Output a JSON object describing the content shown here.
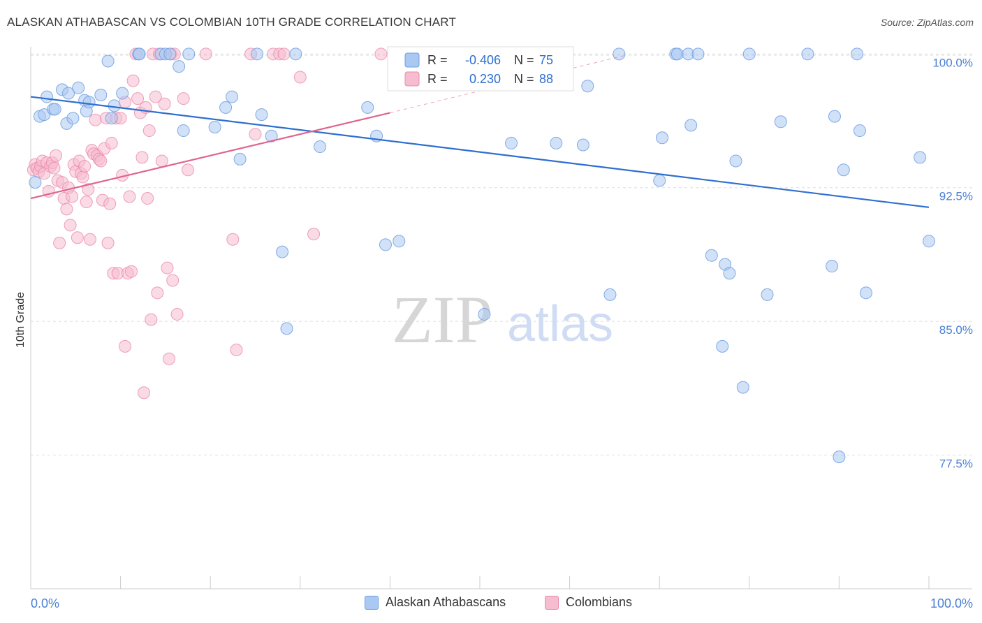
{
  "header": {
    "title": "ALASKAN ATHABASCAN VS COLOMBIAN 10TH GRADE CORRELATION CHART",
    "source": "Source: ZipAtlas.com"
  },
  "watermark": {
    "zip": "ZIP",
    "atlas": "atlas"
  },
  "colors": {
    "blue_fill": "#a9c8f2",
    "blue_stroke": "#6f9ee0",
    "blue_line": "#2d6fd0",
    "pink_fill": "#f6bcd0",
    "pink_stroke": "#ea8aab",
    "pink_line": "#e0648e",
    "axis_label_blue": "#4a7fd4",
    "grid": "#dddddd"
  },
  "legend_stats": {
    "rows": [
      {
        "r_label": "R =",
        "r_value": "-0.406",
        "n_label": "N =",
        "n_value": "75"
      },
      {
        "r_label": "R =",
        "r_value": "0.230",
        "n_label": "N =",
        "n_value": "88"
      }
    ]
  },
  "legend_bottom": {
    "items": [
      {
        "label": "Alaskan Athabascans"
      },
      {
        "label": "Colombians"
      }
    ]
  },
  "chart_data": {
    "type": "scatter",
    "xlabel": "",
    "ylabel": "10th Grade",
    "xlim": [
      0,
      100
    ],
    "ylim": [
      70.0,
      100.6
    ],
    "x_tick_labels": [
      "0.0%",
      "100.0%"
    ],
    "y_ticks": [
      77.5,
      85.0,
      92.5,
      100.0
    ],
    "y_tick_labels": [
      "77.5%",
      "85.0%",
      "92.5%",
      "100.0%"
    ],
    "grid": "horizontal dashed",
    "legend_position": "top-center",
    "series": [
      {
        "name": "Alaskan Athabascans",
        "r": -0.406,
        "n": 75,
        "trend": {
          "x": [
            0,
            100
          ],
          "y": [
            97.6,
            91.4
          ]
        },
        "points": [
          [
            0.5,
            92.8
          ],
          [
            1,
            96.5
          ],
          [
            1.5,
            96.6
          ],
          [
            1.8,
            97.6
          ],
          [
            2.5,
            96.9
          ],
          [
            2.7,
            96.9
          ],
          [
            3.5,
            98.0
          ],
          [
            4,
            96.1
          ],
          [
            4.2,
            97.8
          ],
          [
            4.7,
            96.4
          ],
          [
            5.3,
            98.1
          ],
          [
            6,
            97.4
          ],
          [
            6.2,
            96.8
          ],
          [
            6.5,
            97.3
          ],
          [
            7.8,
            97.7
          ],
          [
            8.6,
            99.6
          ],
          [
            9,
            96.4
          ],
          [
            9.3,
            97.1
          ],
          [
            10.2,
            97.8
          ],
          [
            12,
            100
          ],
          [
            12.1,
            100
          ],
          [
            14.5,
            100
          ],
          [
            15,
            100
          ],
          [
            15.5,
            100
          ],
          [
            16.5,
            99.3
          ],
          [
            17,
            95.7
          ],
          [
            17.6,
            100
          ],
          [
            20.5,
            95.9
          ],
          [
            21.7,
            97.0
          ],
          [
            22.4,
            97.6
          ],
          [
            23.3,
            94.1
          ],
          [
            25.2,
            100
          ],
          [
            25.7,
            96.6
          ],
          [
            26.8,
            95.4
          ],
          [
            28,
            88.9
          ],
          [
            28.5,
            84.6
          ],
          [
            29.5,
            100
          ],
          [
            32.2,
            94.8
          ],
          [
            37.5,
            97.0
          ],
          [
            38.5,
            95.4
          ],
          [
            39.5,
            89.3
          ],
          [
            41,
            89.5
          ],
          [
            50.5,
            85.4
          ],
          [
            53.5,
            95.0
          ],
          [
            58.5,
            95.0
          ],
          [
            61.5,
            94.9
          ],
          [
            62,
            98.2
          ],
          [
            64.5,
            86.5
          ],
          [
            65.5,
            100
          ],
          [
            70,
            92.9
          ],
          [
            70.3,
            95.3
          ],
          [
            71.8,
            100
          ],
          [
            72,
            100
          ],
          [
            73.2,
            100
          ],
          [
            73.5,
            96.0
          ],
          [
            74.3,
            100
          ],
          [
            75.8,
            88.7
          ],
          [
            77,
            83.6
          ],
          [
            77.3,
            88.2
          ],
          [
            77.8,
            87.7
          ],
          [
            78.5,
            94.0
          ],
          [
            79.3,
            81.3
          ],
          [
            80,
            100
          ],
          [
            82,
            86.5
          ],
          [
            83.5,
            96.2
          ],
          [
            86.5,
            100
          ],
          [
            89.2,
            88.1
          ],
          [
            89.5,
            96.5
          ],
          [
            90,
            77.4
          ],
          [
            90.5,
            93.5
          ],
          [
            92,
            100
          ],
          [
            92.3,
            95.7
          ],
          [
            93,
            86.6
          ],
          [
            99,
            94.2
          ],
          [
            100,
            89.5
          ]
        ]
      },
      {
        "name": "Colombians",
        "r": 0.23,
        "n": 88,
        "trend": {
          "x": [
            0,
            40
          ],
          "y": [
            91.9,
            96.7
          ]
        },
        "trend_dashed": {
          "x": [
            40,
            66
          ],
          "y": [
            96.7,
            99.9
          ]
        },
        "points": [
          [
            0.3,
            93.5
          ],
          [
            0.5,
            93.8
          ],
          [
            0.7,
            93.6
          ],
          [
            0.9,
            93.4
          ],
          [
            1.1,
            93.7
          ],
          [
            1.3,
            94.0
          ],
          [
            1.5,
            93.3
          ],
          [
            1.8,
            93.9
          ],
          [
            2,
            92.3
          ],
          [
            2.2,
            93.7
          ],
          [
            2.4,
            93.9
          ],
          [
            2.6,
            93.6
          ],
          [
            2.8,
            94.3
          ],
          [
            3,
            92.9
          ],
          [
            3.2,
            89.4
          ],
          [
            3.5,
            92.8
          ],
          [
            3.7,
            91.9
          ],
          [
            4,
            91.3
          ],
          [
            4.2,
            92.5
          ],
          [
            4.4,
            90.4
          ],
          [
            4.6,
            92.0
          ],
          [
            4.8,
            93.8
          ],
          [
            5,
            93.4
          ],
          [
            5.2,
            89.7
          ],
          [
            5.4,
            94.0
          ],
          [
            5.6,
            93.3
          ],
          [
            5.8,
            93.1
          ],
          [
            6,
            93.7
          ],
          [
            6.2,
            91.7
          ],
          [
            6.4,
            92.4
          ],
          [
            6.6,
            89.6
          ],
          [
            6.8,
            94.6
          ],
          [
            7,
            94.4
          ],
          [
            7.2,
            96.3
          ],
          [
            7.4,
            94.3
          ],
          [
            7.6,
            94.1
          ],
          [
            7.8,
            94.0
          ],
          [
            8,
            91.8
          ],
          [
            8.2,
            94.7
          ],
          [
            8.4,
            96.4
          ],
          [
            8.6,
            89.4
          ],
          [
            8.8,
            91.6
          ],
          [
            9,
            95.0
          ],
          [
            9.2,
            87.7
          ],
          [
            9.5,
            96.4
          ],
          [
            9.7,
            87.7
          ],
          [
            10,
            96.4
          ],
          [
            10.2,
            93.2
          ],
          [
            10.5,
            97.3
          ],
          [
            10.5,
            83.6
          ],
          [
            10.8,
            87.7
          ],
          [
            11,
            92.0
          ],
          [
            11.2,
            87.8
          ],
          [
            11.4,
            98.5
          ],
          [
            11.7,
            100
          ],
          [
            11.9,
            97.5
          ],
          [
            12.2,
            96.7
          ],
          [
            12.4,
            94.2
          ],
          [
            12.6,
            81.0
          ],
          [
            12.8,
            97.0
          ],
          [
            13,
            91.9
          ],
          [
            13.2,
            95.7
          ],
          [
            13.4,
            85.1
          ],
          [
            13.6,
            100
          ],
          [
            13.9,
            97.6
          ],
          [
            14.1,
            86.6
          ],
          [
            14.3,
            100
          ],
          [
            14.6,
            94.0
          ],
          [
            14.9,
            97.2
          ],
          [
            15.2,
            88.0
          ],
          [
            15.4,
            82.9
          ],
          [
            15.6,
            100
          ],
          [
            15.8,
            87.3
          ],
          [
            16,
            100
          ],
          [
            16.3,
            85.4
          ],
          [
            17,
            97.5
          ],
          [
            17.5,
            93.5
          ],
          [
            19.5,
            100
          ],
          [
            22.5,
            89.6
          ],
          [
            22.9,
            83.4
          ],
          [
            24.5,
            100
          ],
          [
            25,
            95.5
          ],
          [
            27,
            100
          ],
          [
            27.7,
            100
          ],
          [
            28.2,
            100
          ],
          [
            30,
            98.7
          ],
          [
            31.5,
            89.9
          ],
          [
            39,
            100
          ]
        ]
      }
    ]
  }
}
